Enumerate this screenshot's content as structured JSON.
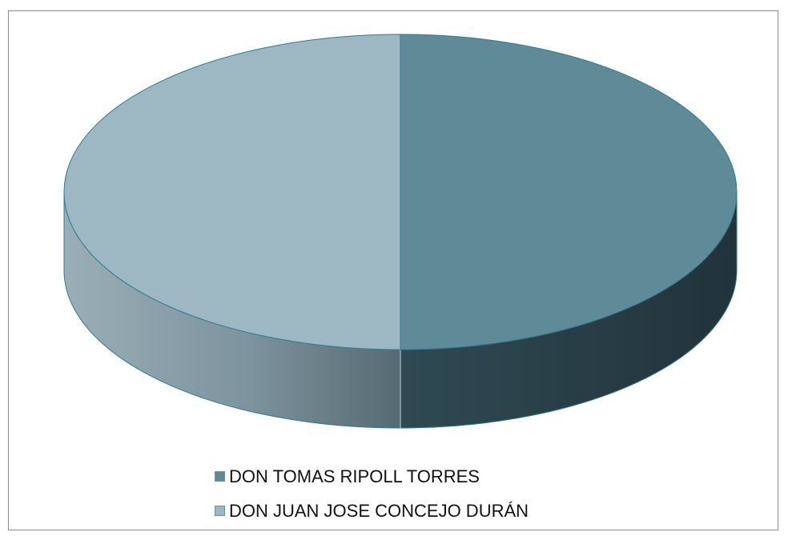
{
  "chart_data": {
    "type": "pie",
    "title": "",
    "slices": [
      {
        "label": "DON TOMAS RIPOLL TORRES",
        "value": 50,
        "color": "#5f8b98",
        "side_dark": "#22333a",
        "side_mid": "#2f4a53"
      },
      {
        "label": "DON JUAN JOSE CONCEJO DURÁN",
        "value": 50,
        "color": "#9db8c3",
        "side_dark": "#566a72",
        "side_mid": "#8aa2ad"
      }
    ],
    "legend": {
      "position": "bottom"
    },
    "edge_color": "#2e7d93"
  }
}
